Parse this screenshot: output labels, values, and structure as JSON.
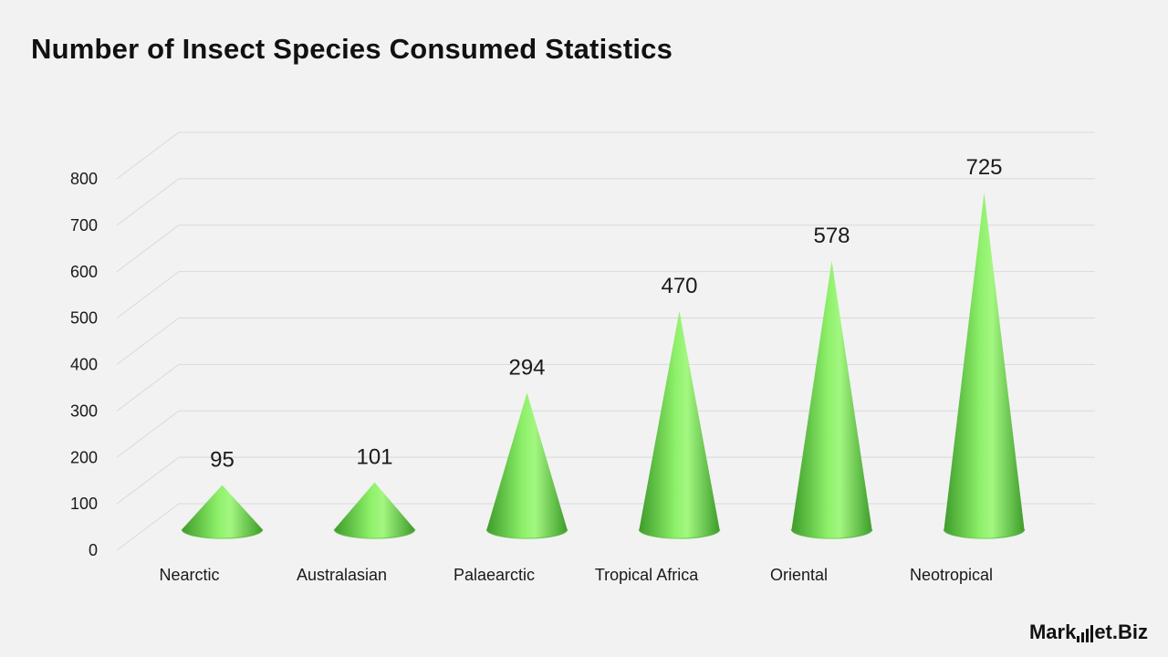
{
  "title": "Number of Insect Species Consumed Statistics",
  "brand": {
    "part1": "Mark",
    "part2": "et.Biz"
  },
  "colors": {
    "cone_light": "#9cf57a",
    "cone_mid": "#6bd44a",
    "cone_dark": "#3e9c2a",
    "grid": "#d9d9d9",
    "text": "#1a1a1a"
  },
  "chart_data": {
    "type": "bar",
    "mark": "cone",
    "categories": [
      "Nearctic",
      "Australasian",
      "Palaearctic",
      "Tropical Africa",
      "Oriental",
      "Neotropical"
    ],
    "values": [
      95,
      101,
      294,
      470,
      578,
      725
    ],
    "yticks": [
      "0",
      "100",
      "200",
      "300",
      "400",
      "500",
      "600",
      "700",
      "800"
    ],
    "ylim": [
      0,
      800
    ],
    "grid": true,
    "legend": "none"
  }
}
